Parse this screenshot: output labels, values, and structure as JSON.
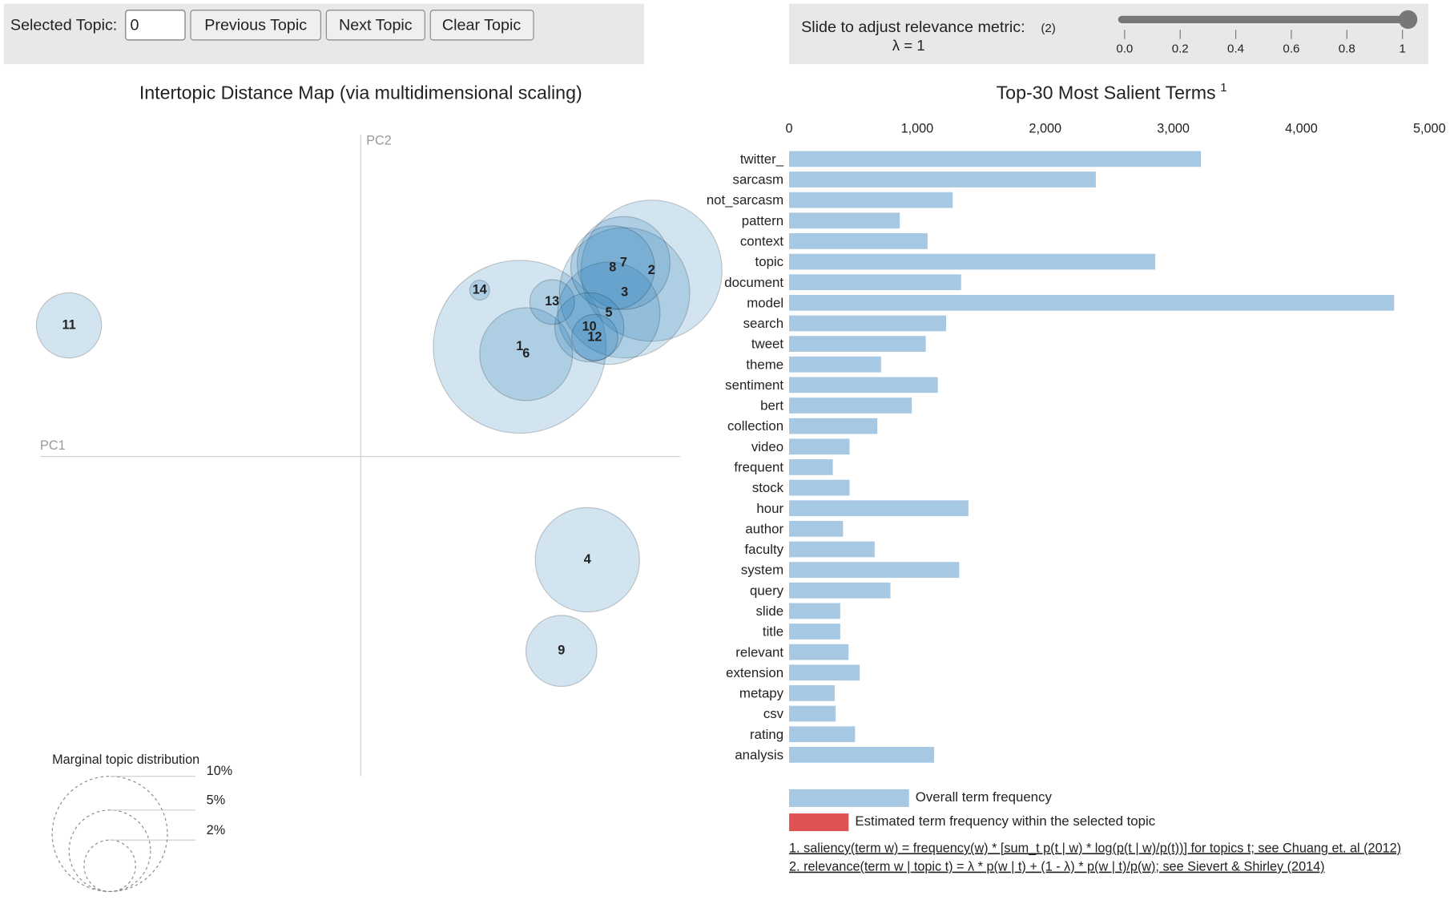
{
  "controls": {
    "topic_label": "Selected Topic:",
    "topic_value": "0",
    "buttons": [
      "Previous Topic",
      "Next Topic",
      "Clear Topic"
    ],
    "slider_label": "Slide to adjust relevance metric:",
    "slider_note": "(2)",
    "lambda_label": "λ = 1",
    "slider": {
      "value": 1,
      "lim": [
        0,
        1
      ],
      "ticks": [
        {
          "value": 0,
          "label": "0.0"
        },
        0.2,
        0.4,
        0.6,
        0.8,
        1
      ]
    }
  },
  "chart_data": [
    {
      "type": "bubble",
      "title": "Intertopic Distance Map (via multidimensional scaling)",
      "xlabel": "PC1",
      "ylabel": "PC2",
      "color": "#1f77b4",
      "labels": [
        "1",
        "2",
        "3",
        "4",
        "5",
        "6",
        "7",
        "8",
        "9",
        "10",
        "11",
        "12",
        "13",
        "14"
      ],
      "x": [
        0.496,
        0.907,
        0.823,
        0.707,
        0.774,
        0.516,
        0.82,
        0.786,
        0.626,
        0.713,
        -0.91,
        0.73,
        0.597,
        0.371
      ],
      "y": [
        0.343,
        0.581,
        0.512,
        -0.323,
        0.448,
        0.32,
        0.605,
        0.59,
        -0.608,
        0.404,
        0.41,
        0.372,
        0.483,
        0.52
      ],
      "sizes": [
        22.5,
        15,
        12.8,
        8.2,
        7.9,
        6.5,
        6.5,
        5.3,
        3.8,
        3.6,
        3.2,
        1.6,
        1.5,
        0.3
      ],
      "xlim": [
        -1,
        1
      ],
      "ylim": [
        -1,
        1
      ],
      "size_legend": {
        "title": "Marginal topic distribution",
        "sizes": [
          {
            "value": 2,
            "label": "2%"
          },
          {
            "value": 5,
            "label": "5%"
          },
          {
            "value": 10,
            "label": "10%"
          }
        ]
      }
    },
    {
      "type": "bar",
      "title": "Top-30 Most Salient Terms",
      "title_note": "1",
      "color": "#a6c8e2",
      "categories": [
        "twitter_",
        "sarcasm",
        "not_sarcasm",
        "pattern",
        "context",
        "topic",
        "document",
        "model",
        "search",
        "tweet",
        "theme",
        "sentiment",
        "bert",
        "collection",
        "video",
        "frequent",
        "stock",
        "hour",
        "author",
        "faculty",
        "system",
        "query",
        "slide",
        "title",
        "relevant",
        "extension",
        "metapy",
        "csv",
        "rating",
        "analysis"
      ],
      "values": [
        3215,
        2395,
        1277,
        864,
        1081,
        2859,
        1343,
        4724,
        1226,
        1067,
        718,
        1161,
        958,
        689,
        472,
        341,
        472,
        1400,
        421,
        668,
        1328,
        791,
        399,
        399,
        464,
        551,
        356,
        363,
        515,
        1132
      ],
      "xlim": [
        0,
        5000
      ],
      "xticks": [
        0,
        {
          "value": 1000,
          "label": "1,000"
        },
        {
          "value": 2000,
          "label": "2,000"
        },
        {
          "value": 3000,
          "label": "3,000"
        },
        {
          "value": 4000,
          "label": "4,000"
        },
        {
          "value": 5000,
          "label": "5,000"
        }
      ],
      "legend": [
        {
          "name": "Overall term frequency",
          "color": "#a6c8e2"
        },
        {
          "name": "Estimated term frequency within the selected topic",
          "color": "#e05252"
        }
      ]
    }
  ],
  "footnotes": [
    "1. saliency(term w) = frequency(w) * [sum_t p(t | w) * log(p(t | w)/p(t))] for topics t; see Chuang et. al (2012)",
    "2. relevance(term w | topic t) = λ * p(w | t) + (1 - λ) * p(w | t)/p(w); see Sievert & Shirley (2014)"
  ]
}
